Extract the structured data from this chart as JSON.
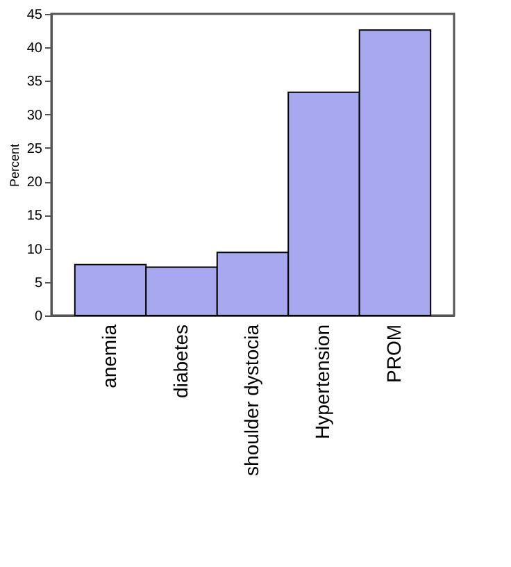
{
  "chart_data": {
    "type": "bar",
    "ylabel": "Percent",
    "categories": [
      "anemia",
      "diabetes",
      "shoulder dystocia",
      "Hypertension",
      "PROM"
    ],
    "values": [
      7.6,
      7.2,
      9.4,
      33.3,
      42.6
    ],
    "color": "#a8a8f0",
    "ylim": [
      0,
      45
    ],
    "yticks": [
      0,
      5,
      10,
      15,
      20,
      25,
      30,
      35,
      40,
      45
    ],
    "grid": false
  }
}
